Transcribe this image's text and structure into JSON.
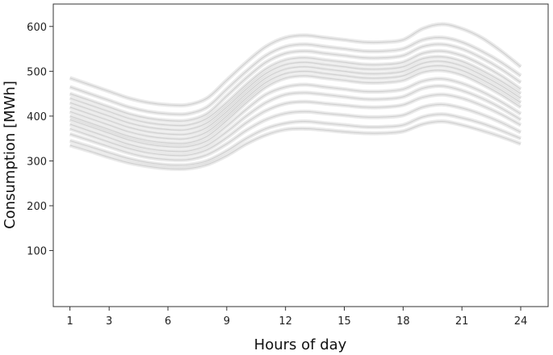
{
  "chart_data": {
    "type": "line",
    "title": "",
    "xlabel": "Hours of day",
    "ylabel": "Consumption [MWh]",
    "xlim": [
      0.15,
      25.4
    ],
    "ylim": [
      -25,
      650
    ],
    "xticks": [
      1,
      3,
      6,
      9,
      12,
      15,
      18,
      21,
      24
    ],
    "xtick_labels": [
      "1",
      "3",
      "6",
      "9",
      "12",
      "15",
      "18",
      "21",
      "24"
    ],
    "yticks": [
      100,
      200,
      300,
      400,
      500,
      600
    ],
    "ytick_labels": [
      "100",
      "200",
      "300",
      "400",
      "500",
      "600"
    ],
    "grid": false,
    "legend": "none",
    "line_color": "#9a9a9a",
    "x": [
      1,
      2,
      3,
      4,
      5,
      6,
      7,
      8,
      9,
      10,
      11,
      12,
      13,
      14,
      15,
      16,
      17,
      18,
      19,
      20,
      21,
      22,
      23,
      24
    ],
    "series": [
      {
        "values": [
          485,
          470,
          455,
          440,
          430,
          425,
          425,
          440,
          480,
          520,
          555,
          575,
          580,
          575,
          570,
          565,
          565,
          570,
          595,
          605,
          595,
          575,
          545,
          510
        ]
      },
      {
        "values": [
          465,
          450,
          435,
          420,
          410,
          405,
          405,
          420,
          460,
          500,
          535,
          555,
          560,
          555,
          550,
          545,
          545,
          550,
          570,
          575,
          565,
          545,
          520,
          490
        ]
      },
      {
        "values": [
          450,
          435,
          420,
          405,
          395,
          390,
          390,
          405,
          445,
          485,
          520,
          540,
          545,
          540,
          535,
          530,
          530,
          535,
          555,
          560,
          550,
          530,
          505,
          475
        ]
      },
      {
        "values": [
          440,
          425,
          410,
          395,
          385,
          380,
          380,
          395,
          430,
          470,
          505,
          525,
          530,
          525,
          520,
          515,
          515,
          520,
          540,
          545,
          535,
          515,
          490,
          460
        ]
      },
      {
        "values": [
          430,
          415,
          400,
          385,
          375,
          370,
          370,
          385,
          420,
          460,
          495,
          515,
          520,
          515,
          510,
          505,
          505,
          510,
          528,
          532,
          522,
          502,
          478,
          450
        ]
      },
      {
        "values": [
          420,
          405,
          390,
          375,
          365,
          360,
          360,
          375,
          410,
          450,
          485,
          505,
          510,
          505,
          500,
          495,
          495,
          500,
          518,
          522,
          512,
          492,
          468,
          440
        ]
      },
      {
        "values": [
          410,
          395,
          380,
          365,
          355,
          350,
          350,
          365,
          400,
          440,
          475,
          495,
          500,
          495,
          490,
          485,
          485,
          490,
          508,
          512,
          502,
          482,
          458,
          430
        ]
      },
      {
        "values": [
          400,
          385,
          370,
          355,
          345,
          340,
          340,
          355,
          390,
          430,
          465,
          485,
          490,
          485,
          480,
          475,
          475,
          480,
          498,
          502,
          492,
          472,
          448,
          420
        ]
      },
      {
        "values": [
          392,
          377,
          362,
          347,
          337,
          332,
          332,
          345,
          378,
          415,
          448,
          465,
          470,
          465,
          460,
          455,
          455,
          460,
          478,
          483,
          473,
          455,
          432,
          405
        ]
      },
      {
        "values": [
          382,
          367,
          352,
          337,
          327,
          322,
          322,
          335,
          365,
          400,
          430,
          448,
          452,
          448,
          443,
          438,
          438,
          443,
          462,
          467,
          457,
          440,
          418,
          392
        ]
      },
      {
        "values": [
          372,
          357,
          342,
          328,
          318,
          313,
          313,
          325,
          352,
          385,
          412,
          428,
          432,
          428,
          424,
          420,
          420,
          425,
          442,
          448,
          440,
          424,
          404,
          380
        ]
      },
      {
        "values": [
          360,
          346,
          332,
          318,
          308,
          303,
          303,
          314,
          338,
          368,
          392,
          406,
          410,
          406,
          402,
          398,
          398,
          402,
          420,
          426,
          418,
          404,
          386,
          364
        ]
      },
      {
        "values": [
          345,
          332,
          318,
          305,
          296,
          291,
          291,
          300,
          322,
          350,
          372,
          384,
          388,
          384,
          380,
          376,
          376,
          380,
          398,
          404,
          396,
          384,
          368,
          350
        ]
      },
      {
        "values": [
          335,
          322,
          308,
          296,
          288,
          283,
          283,
          292,
          312,
          338,
          358,
          370,
          372,
          369,
          365,
          362,
          362,
          366,
          382,
          388,
          380,
          368,
          354,
          338
        ]
      }
    ]
  }
}
